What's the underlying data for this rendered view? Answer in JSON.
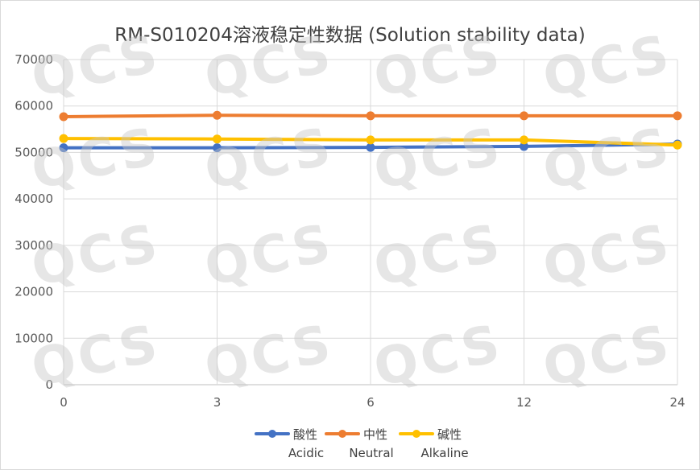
{
  "watermark_text": "QCS",
  "chart_data": {
    "type": "line",
    "title": "RM-S010204溶液稳定性数据 (Solution stability data)",
    "categories": [
      "0",
      "3",
      "6",
      "12",
      "24"
    ],
    "ylim": [
      0,
      70000
    ],
    "yticks": [
      0,
      10000,
      20000,
      30000,
      40000,
      50000,
      60000,
      70000
    ],
    "grid": true,
    "legend_position": "bottom",
    "series": [
      {
        "name": "酸性",
        "name_en": "Acidic",
        "color": "#4472c4",
        "values": [
          51000,
          51000,
          51100,
          51300,
          51800
        ]
      },
      {
        "name": "中性",
        "name_en": "Neutral",
        "color": "#ed7d31",
        "values": [
          57700,
          58000,
          57900,
          57900,
          57900
        ]
      },
      {
        "name": "碱性",
        "name_en": "Alkaline",
        "color": "#ffc000",
        "values": [
          53000,
          52900,
          52700,
          52700,
          51600
        ]
      }
    ]
  }
}
